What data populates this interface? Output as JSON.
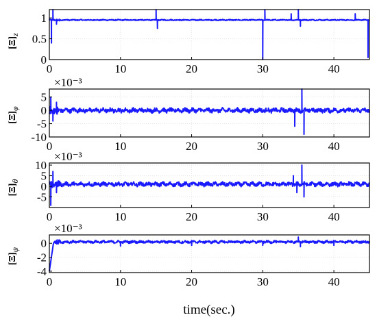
{
  "chart_data": [
    {
      "type": "line",
      "ylabel": "[Ξ]",
      "ylabel_sub": "z",
      "y_multiplier": "",
      "xlim": [
        0,
        45
      ],
      "ylim": [
        0,
        1.2
      ],
      "xticks": [
        0,
        10,
        20,
        30,
        40
      ],
      "yticks": [
        0,
        0.5,
        1
      ],
      "ytick_labels": [
        "0",
        "0.5",
        "1"
      ],
      "baseline": 0.95,
      "noise": 0.01,
      "spikes": [
        {
          "x": 0.3,
          "y": 0.4
        },
        {
          "x": 0.5,
          "y": 1.2
        },
        {
          "x": 1.0,
          "y": 0.85
        },
        {
          "x": 15,
          "y": 1.2
        },
        {
          "x": 15.2,
          "y": 0.75
        },
        {
          "x": 30,
          "y": 0.0
        },
        {
          "x": 30.3,
          "y": 1.2
        },
        {
          "x": 34,
          "y": 1.1
        },
        {
          "x": 35,
          "y": 1.2
        },
        {
          "x": 35.3,
          "y": 0.8
        },
        {
          "x": 43,
          "y": 1.1
        },
        {
          "x": 44.8,
          "y": 0.05
        }
      ],
      "series_color": "#1a1aff"
    },
    {
      "type": "line",
      "ylabel": "[Ξ]",
      "ylabel_sub": "φ",
      "y_multiplier": "×10⁻³",
      "xlim": [
        0,
        45
      ],
      "ylim": [
        -10,
        8
      ],
      "xticks": [
        0,
        10,
        20,
        30,
        40
      ],
      "yticks": [
        -10,
        -5,
        0,
        5
      ],
      "ytick_labels": [
        "-10",
        "-5",
        "0",
        "5"
      ],
      "baseline": 0,
      "noise": 0.7,
      "spikes": [
        {
          "x": 0.2,
          "y": 5
        },
        {
          "x": 0.5,
          "y": -4
        },
        {
          "x": 1.0,
          "y": 3
        },
        {
          "x": 34.5,
          "y": -6
        },
        {
          "x": 35.5,
          "y": 8
        },
        {
          "x": 35.8,
          "y": -9
        }
      ],
      "series_color": "#1a1aff"
    },
    {
      "type": "line",
      "ylabel": "[Ξ]",
      "ylabel_sub": "θ",
      "y_multiplier": "×10⁻³",
      "xlim": [
        0,
        45
      ],
      "ylim": [
        -10,
        11
      ],
      "xticks": [
        0,
        10,
        20,
        30,
        40
      ],
      "yticks": [
        -5,
        0,
        5,
        10
      ],
      "ytick_labels": [
        "-5",
        "0",
        "5",
        "10"
      ],
      "baseline": 1,
      "noise": 0.8,
      "spikes": [
        {
          "x": 0.2,
          "y": -9
        },
        {
          "x": 0.5,
          "y": 7
        },
        {
          "x": 1.0,
          "y": -3
        },
        {
          "x": 34.3,
          "y": 5
        },
        {
          "x": 34.8,
          "y": -3
        },
        {
          "x": 35.5,
          "y": 10
        },
        {
          "x": 35.8,
          "y": -5
        }
      ],
      "series_color": "#1a1aff"
    },
    {
      "type": "line",
      "ylabel": "[Ξ]",
      "ylabel_sub": "ψ",
      "y_multiplier": "×10⁻³",
      "xlim": [
        0,
        45
      ],
      "ylim": [
        -4.2,
        1.2
      ],
      "xticks": [
        0,
        10,
        20,
        30,
        40
      ],
      "xtick_labels": [
        "0",
        "10",
        "20",
        "30",
        "40"
      ],
      "yticks": [
        -4,
        -2,
        0
      ],
      "ytick_labels": [
        "-4",
        "-2",
        "0"
      ],
      "baseline": 0.2,
      "noise": 0.15,
      "start": -4,
      "spikes": [
        {
          "x": 10,
          "y": -0.4
        },
        {
          "x": 20,
          "y": -0.3
        },
        {
          "x": 30,
          "y": -0.3
        },
        {
          "x": 35,
          "y": 0.9
        },
        {
          "x": 35.3,
          "y": -0.5
        },
        {
          "x": 40,
          "y": -0.3
        }
      ],
      "series_color": "#1a1aff"
    }
  ],
  "xlabel": "time(sec.)"
}
